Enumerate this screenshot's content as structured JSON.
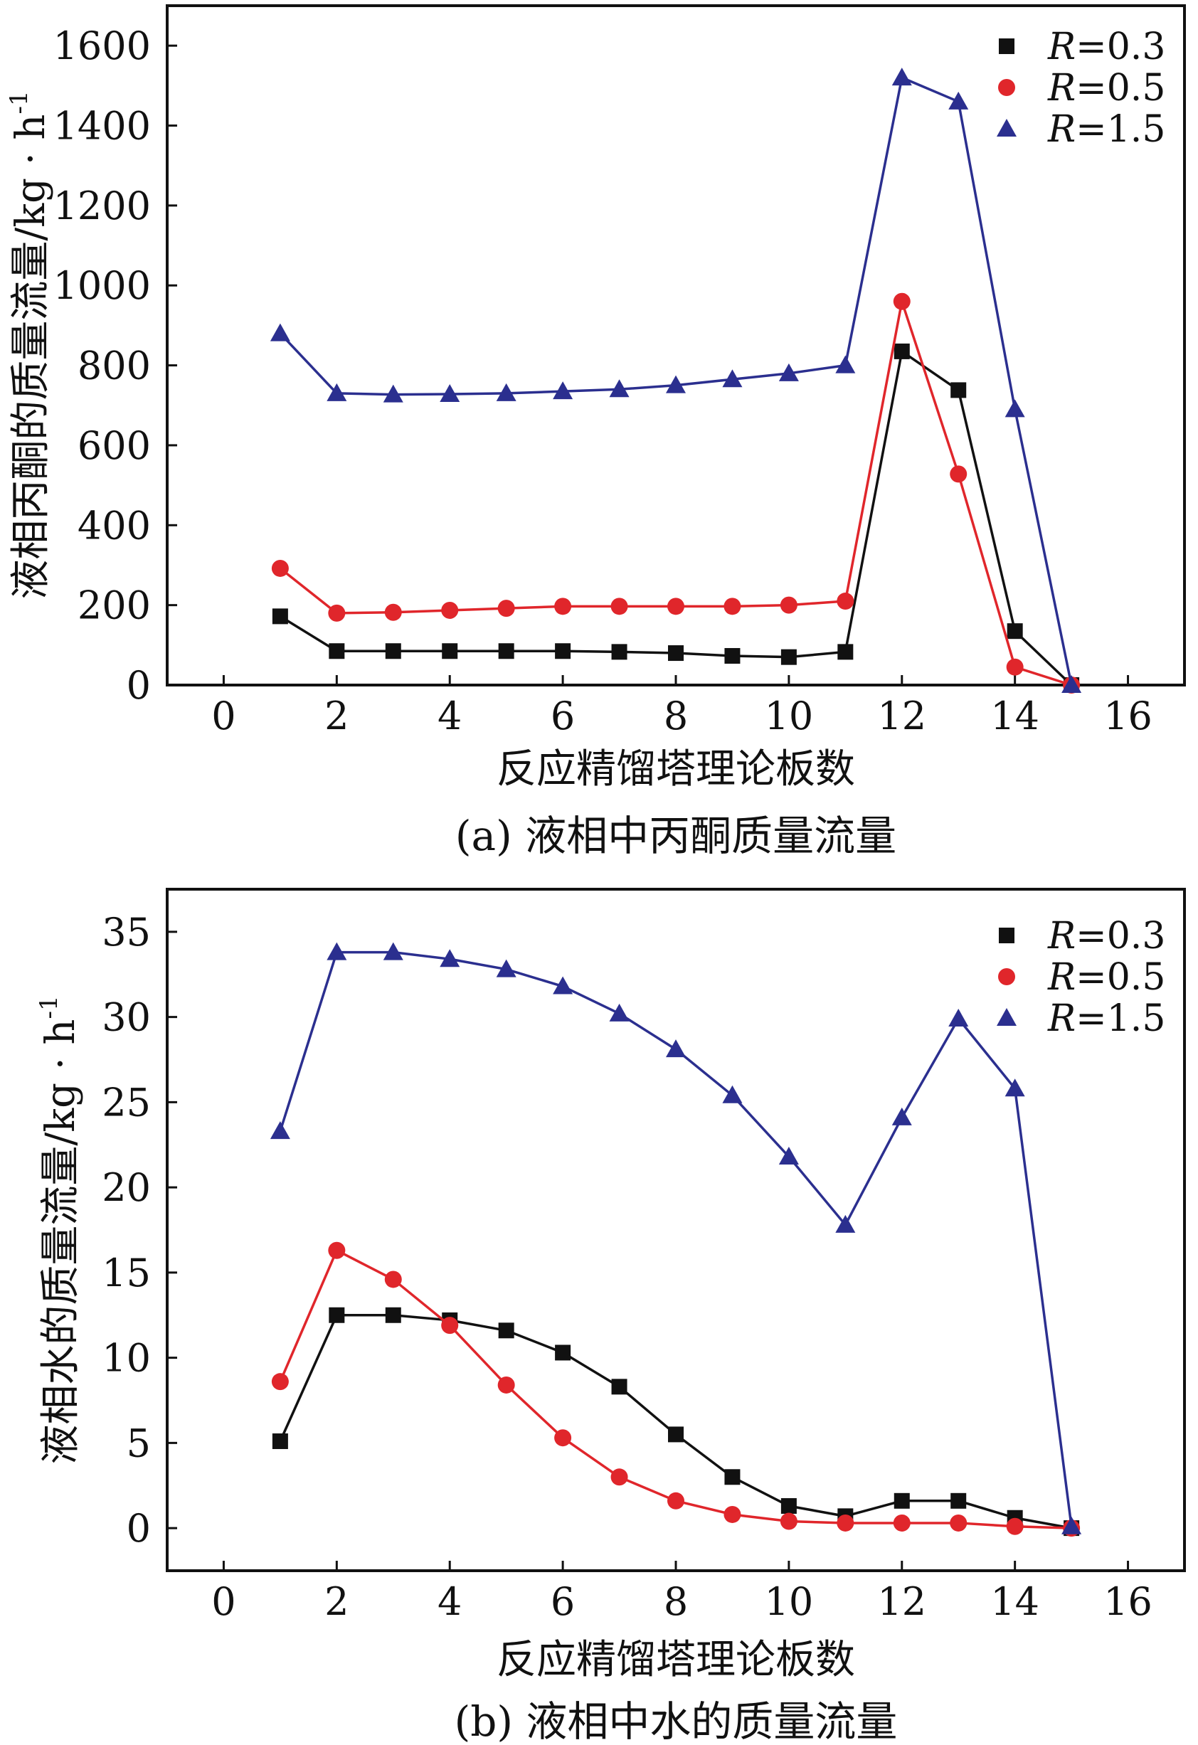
{
  "chart_data": [
    {
      "type": "line",
      "caption": "(a) 液相中丙酮质量流量",
      "xlabel": "反应精馏塔理论板数",
      "ylabel": "液相丙酮的质量流量/kg · h",
      "ylabel_sup": "-1",
      "xlim": [
        -1,
        17
      ],
      "ylim": [
        0,
        1700
      ],
      "xticks": [
        "0",
        "2",
        "4",
        "6",
        "8",
        "10",
        "12",
        "14",
        "16"
      ],
      "yticks": [
        "0",
        "200",
        "400",
        "600",
        "800",
        "1000",
        "1200",
        "1400",
        "1600"
      ],
      "x": [
        1,
        2,
        3,
        4,
        5,
        6,
        7,
        8,
        9,
        10,
        11,
        12,
        13,
        14,
        15
      ],
      "series": [
        {
          "name": "R=0.3",
          "name_italic": "R",
          "name_rest": "=0.3",
          "color": "#111111",
          "marker": "square",
          "values": [
            172,
            85,
            85,
            85,
            85,
            85,
            83,
            80,
            73,
            70,
            83,
            835,
            738,
            135,
            0
          ]
        },
        {
          "name": "R=0.5",
          "name_italic": "R",
          "name_rest": "=0.5",
          "color": "#e0262b",
          "marker": "circle",
          "values": [
            292,
            180,
            182,
            187,
            192,
            197,
            197,
            197,
            197,
            200,
            210,
            960,
            528,
            45,
            0
          ]
        },
        {
          "name": "R=1.5",
          "name_italic": "R",
          "name_rest": "=1.5",
          "color": "#2b2f8f",
          "marker": "triangle",
          "values": [
            880,
            730,
            727,
            728,
            730,
            735,
            740,
            750,
            765,
            780,
            800,
            1520,
            1460,
            690,
            0
          ]
        }
      ]
    },
    {
      "type": "line",
      "caption": "(b) 液相中水的质量流量",
      "xlabel": "反应精馏塔理论板数",
      "ylabel": "液相水的质量流量/kg · h",
      "ylabel_sup": "-1",
      "xlim": [
        -1,
        17
      ],
      "ylim": [
        -2.5,
        37.5
      ],
      "xticks": [
        "0",
        "2",
        "4",
        "6",
        "8",
        "10",
        "12",
        "14",
        "16"
      ],
      "yticks": [
        "0",
        "5",
        "10",
        "15",
        "20",
        "25",
        "30",
        "35"
      ],
      "x": [
        1,
        2,
        3,
        4,
        5,
        6,
        7,
        8,
        9,
        10,
        11,
        12,
        13,
        14,
        15
      ],
      "series": [
        {
          "name": "R=0.3",
          "name_italic": "R",
          "name_rest": "=0.3",
          "color": "#111111",
          "marker": "square",
          "values": [
            5.1,
            12.5,
            12.5,
            12.2,
            11.6,
            10.3,
            8.3,
            5.5,
            3.0,
            1.3,
            0.7,
            1.6,
            1.6,
            0.6,
            0.0
          ]
        },
        {
          "name": "R=0.5",
          "name_italic": "R",
          "name_rest": "=0.5",
          "color": "#e0262b",
          "marker": "circle",
          "values": [
            8.6,
            16.3,
            14.6,
            11.9,
            8.4,
            5.3,
            3.0,
            1.6,
            0.8,
            0.4,
            0.3,
            0.3,
            0.3,
            0.1,
            0.0
          ]
        },
        {
          "name": "R=1.5",
          "name_italic": "R",
          "name_rest": "=1.5",
          "color": "#2b2f8f",
          "marker": "triangle",
          "values": [
            23.3,
            33.8,
            33.8,
            33.4,
            32.8,
            31.8,
            30.2,
            28.1,
            25.4,
            21.8,
            17.8,
            24.1,
            29.9,
            25.8,
            0.1
          ]
        }
      ]
    }
  ]
}
